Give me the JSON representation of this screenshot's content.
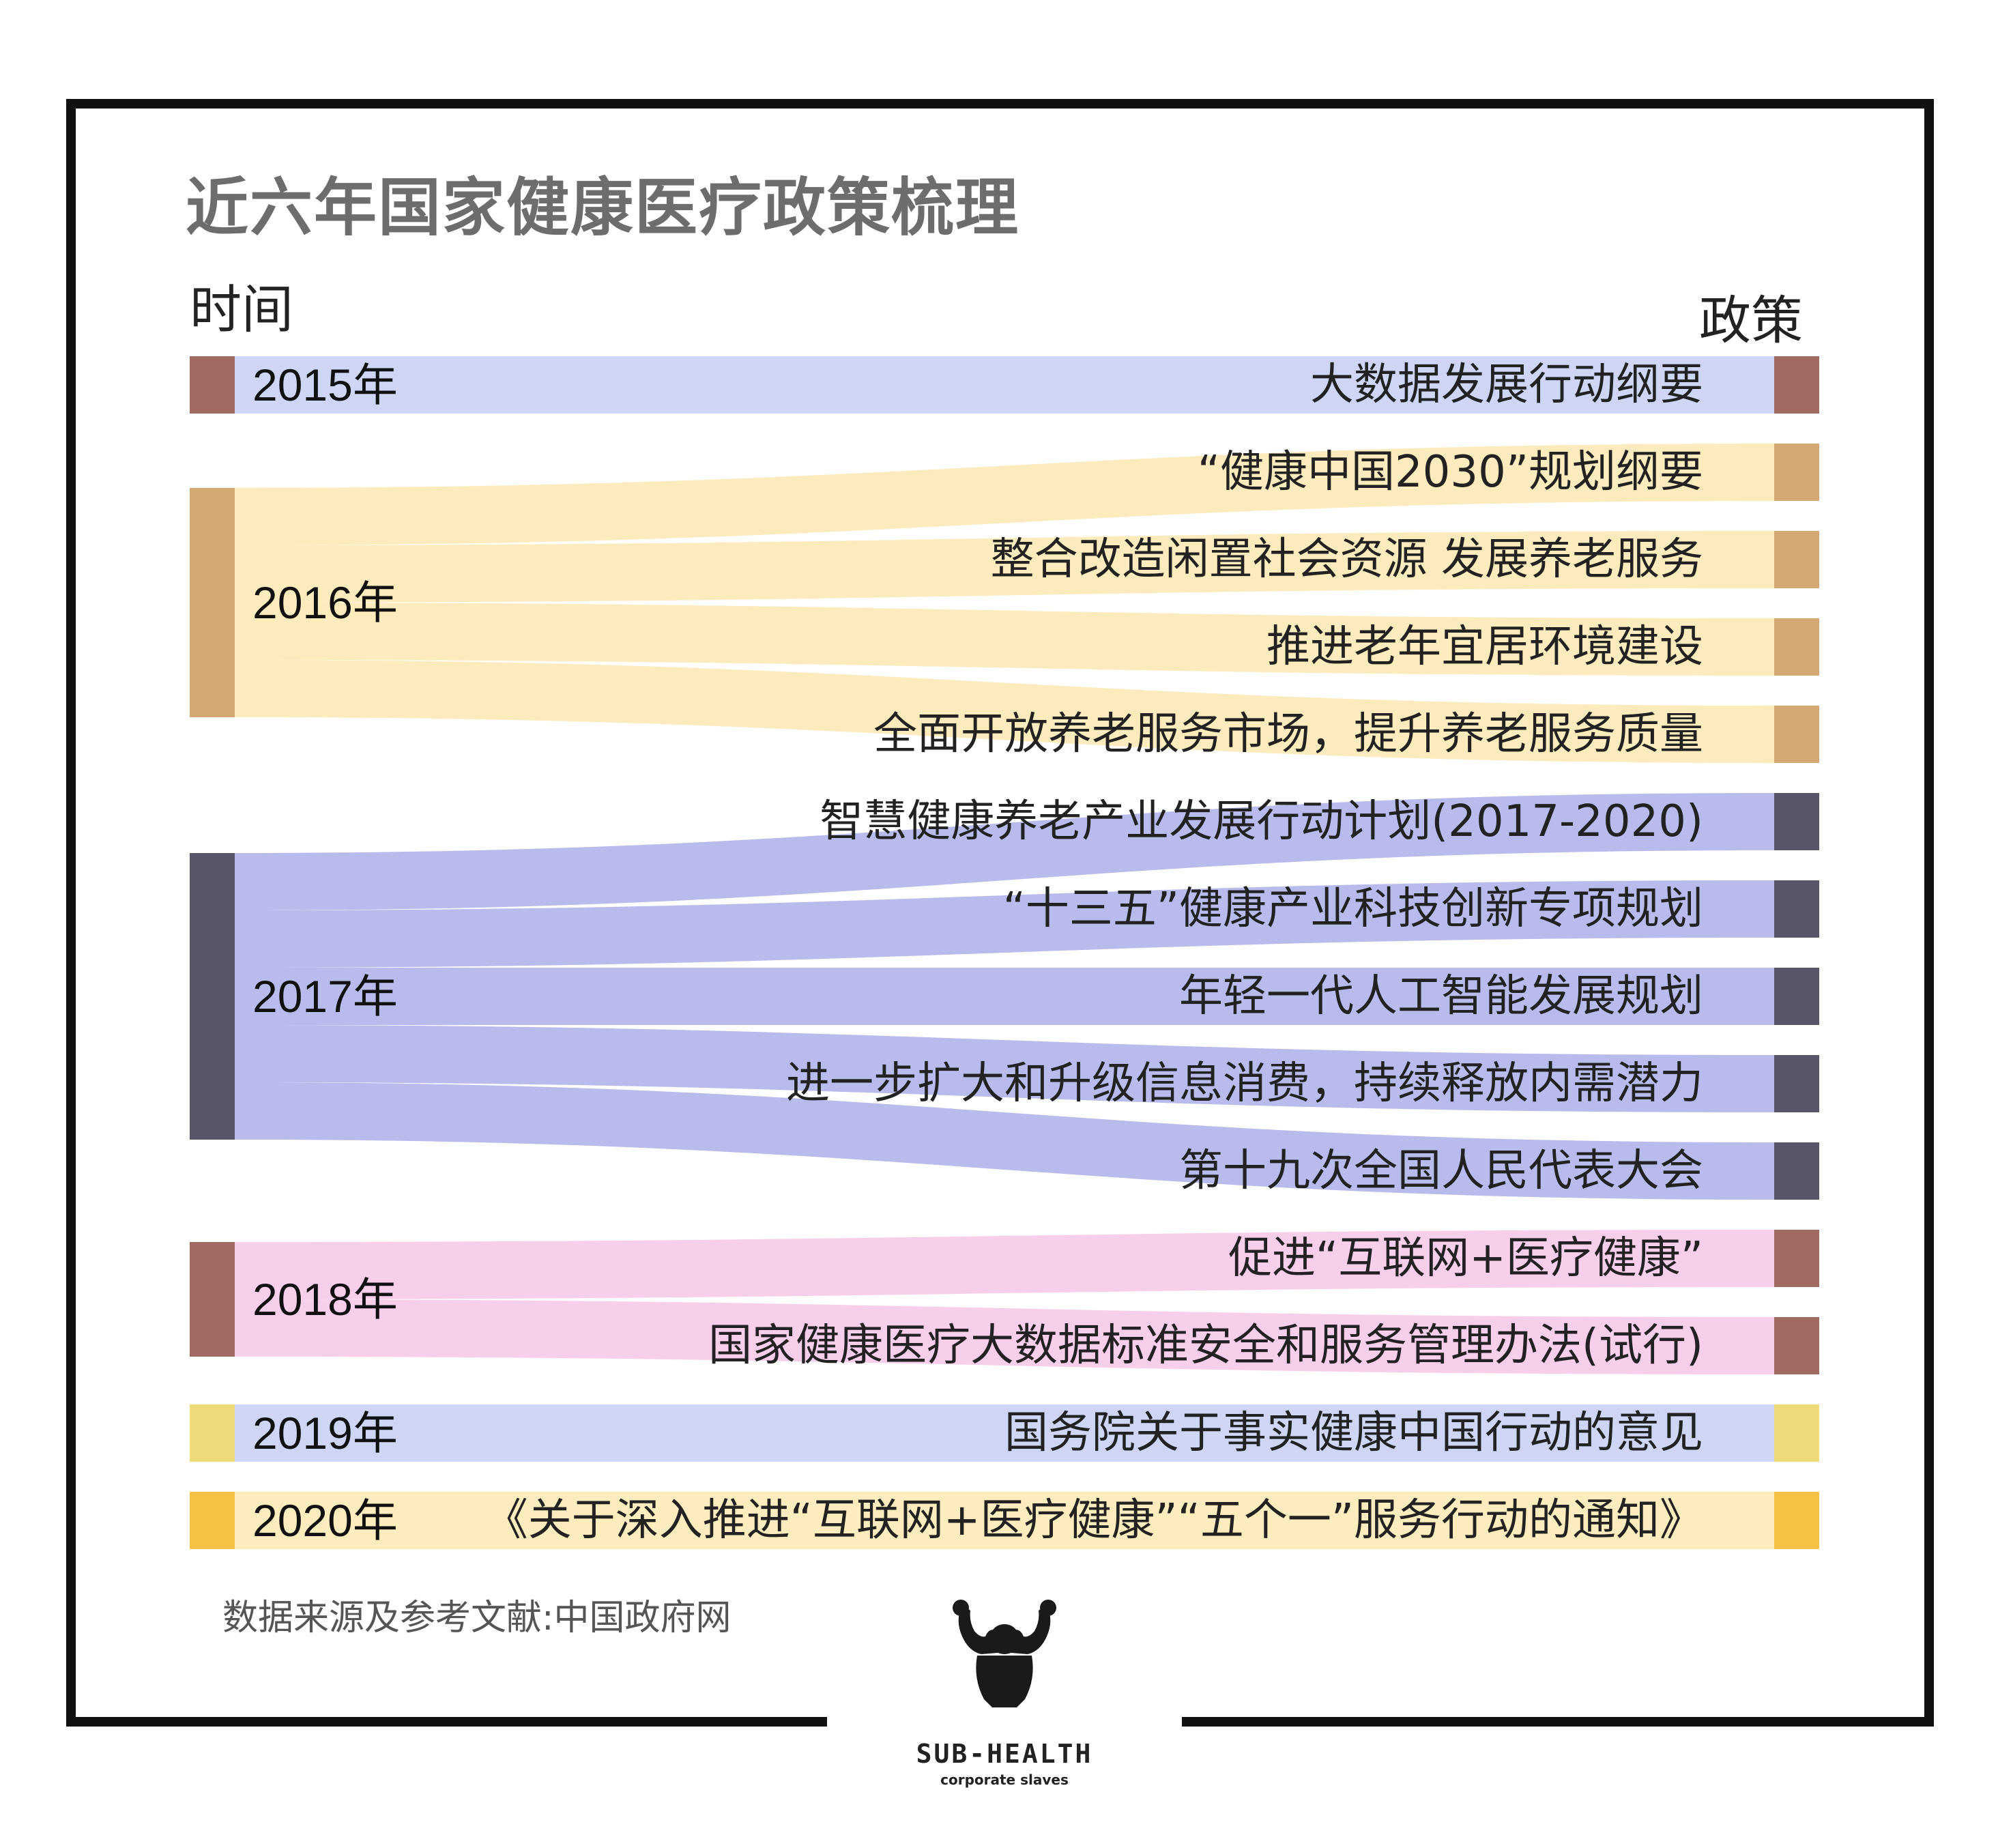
{
  "title": "近六年国家健康医疗政策梳理",
  "left_header": "时间",
  "right_header": "政策",
  "source": "数据来源及参考文献:中国政府网",
  "logo": {
    "name": "SUB-HEALTH",
    "tagline": "corporate slaves",
    "icon": "flexing-bodybuilder-icon"
  },
  "colors": {
    "2015_bar": "#a06b62",
    "2015_flow": "#cbd3f4",
    "2016_bar": "#d4a872",
    "2016_flow": "#fcebb9",
    "2017_bar": "#575568",
    "2017_flow": "#b5b7ec",
    "2018_bar": "#a06b62",
    "2018_flow": "#f8ccea",
    "2019_bar": "#eedc7a",
    "2019_flow": "#cbd3f4",
    "2020_bar": "#f6c244",
    "2020_flow": "#fdebb9"
  },
  "years": [
    {
      "label": "2015年",
      "color": "#a06b62",
      "flow": "#cbd3f4",
      "policies": [
        {
          "label": "大数据发展行动纲要",
          "color": "#a06b62"
        }
      ]
    },
    {
      "label": "2016年",
      "color": "#d4a872",
      "flow": "#fcebb9",
      "policies": [
        {
          "label": "“健康中国2030”规划纲要",
          "color": "#d4a872"
        },
        {
          "label": "整合改造闲置社会资源 发展养老服务",
          "color": "#d4a872"
        },
        {
          "label": "推进老年宜居环境建设",
          "color": "#d4a872"
        },
        {
          "label": "全面开放养老服务市场，提升养老服务质量",
          "color": "#d4a872"
        }
      ]
    },
    {
      "label": "2017年",
      "color": "#575568",
      "flow": "#b5b7ec",
      "policies": [
        {
          "label": "智慧健康养老产业发展行动计划(2017-2020)",
          "color": "#575568"
        },
        {
          "label": "“十三五”健康产业科技创新专项规划",
          "color": "#575568"
        },
        {
          "label": "年轻一代人工智能发展规划",
          "color": "#575568"
        },
        {
          "label": "进一步扩大和升级信息消费，持续释放内需潜力",
          "color": "#575568"
        },
        {
          "label": "第十九次全国人民代表大会",
          "color": "#575568"
        }
      ]
    },
    {
      "label": "2018年",
      "color": "#a06b62",
      "flow": "#f8ccea",
      "policies": [
        {
          "label": "促进“互联网+医疗健康”",
          "color": "#a06b62"
        },
        {
          "label": "国家健康医疗大数据标准安全和服务管理办法(试行)",
          "color": "#a06b62"
        }
      ]
    },
    {
      "label": "2019年",
      "color": "#eedc7a",
      "flow": "#cbd3f4",
      "policies": [
        {
          "label": "国务院关于事实健康中国行动的意见",
          "color": "#eedc7a"
        }
      ]
    },
    {
      "label": "2020年",
      "color": "#f6c244",
      "flow": "#fdebb9",
      "policies": [
        {
          "label": "《关于深入推进“互联网+医疗健康”“五个一”服务行动的通知》",
          "color": "#f6c244"
        }
      ]
    }
  ]
}
